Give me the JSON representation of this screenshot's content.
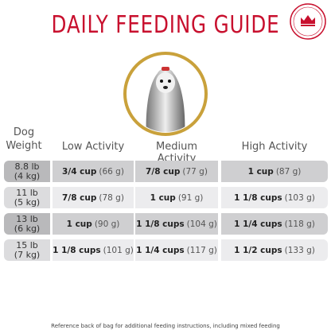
{
  "header": {
    "title": "DAILY FEEDING GUIDE"
  },
  "table": {
    "columns": [
      "Dog Weight",
      "Low Activity",
      "Medium Activity",
      "High Activity"
    ],
    "rows": [
      [
        {
          "weight": "8.8 lb",
          "metric": "(4 kg)"
        },
        {
          "amount": "3/4 cup",
          "grams": "(66 g)"
        },
        {
          "amount": "7/8 cup",
          "grams": "(77 g)"
        },
        {
          "amount": "1 cup",
          "grams": "(87 g)"
        }
      ],
      [
        {
          "weight": "11 lb",
          "metric": "(5 kg)"
        },
        {
          "amount": "7/8 cup",
          "grams": "(78 g)"
        },
        {
          "amount": "1 cup",
          "grams": "(91 g)"
        },
        {
          "amount": "1 1/8 cups",
          "grams": "(103 g)"
        }
      ],
      [
        {
          "weight": "13 lb",
          "metric": "(6 kg)"
        },
        {
          "amount": "1 cup",
          "grams": "(90 g)"
        },
        {
          "amount": "1 1/8 cups",
          "grams": "(104 g)"
        },
        {
          "amount": "1 1/4 cups",
          "grams": "(118 g)"
        }
      ],
      [
        {
          "weight": "15 lb",
          "metric": "(7 kg)"
        },
        {
          "amount": "1 1/8 cups",
          "grams": "(101 g)"
        },
        {
          "amount": "1 1/4 cups",
          "grams": "(117 g)"
        },
        {
          "amount": "1 1/2 cups",
          "grams": "(133 g)"
        }
      ]
    ]
  },
  "footer": {
    "note": "Reference back of bag for additional feeding instructions, including mixed feeding"
  }
}
